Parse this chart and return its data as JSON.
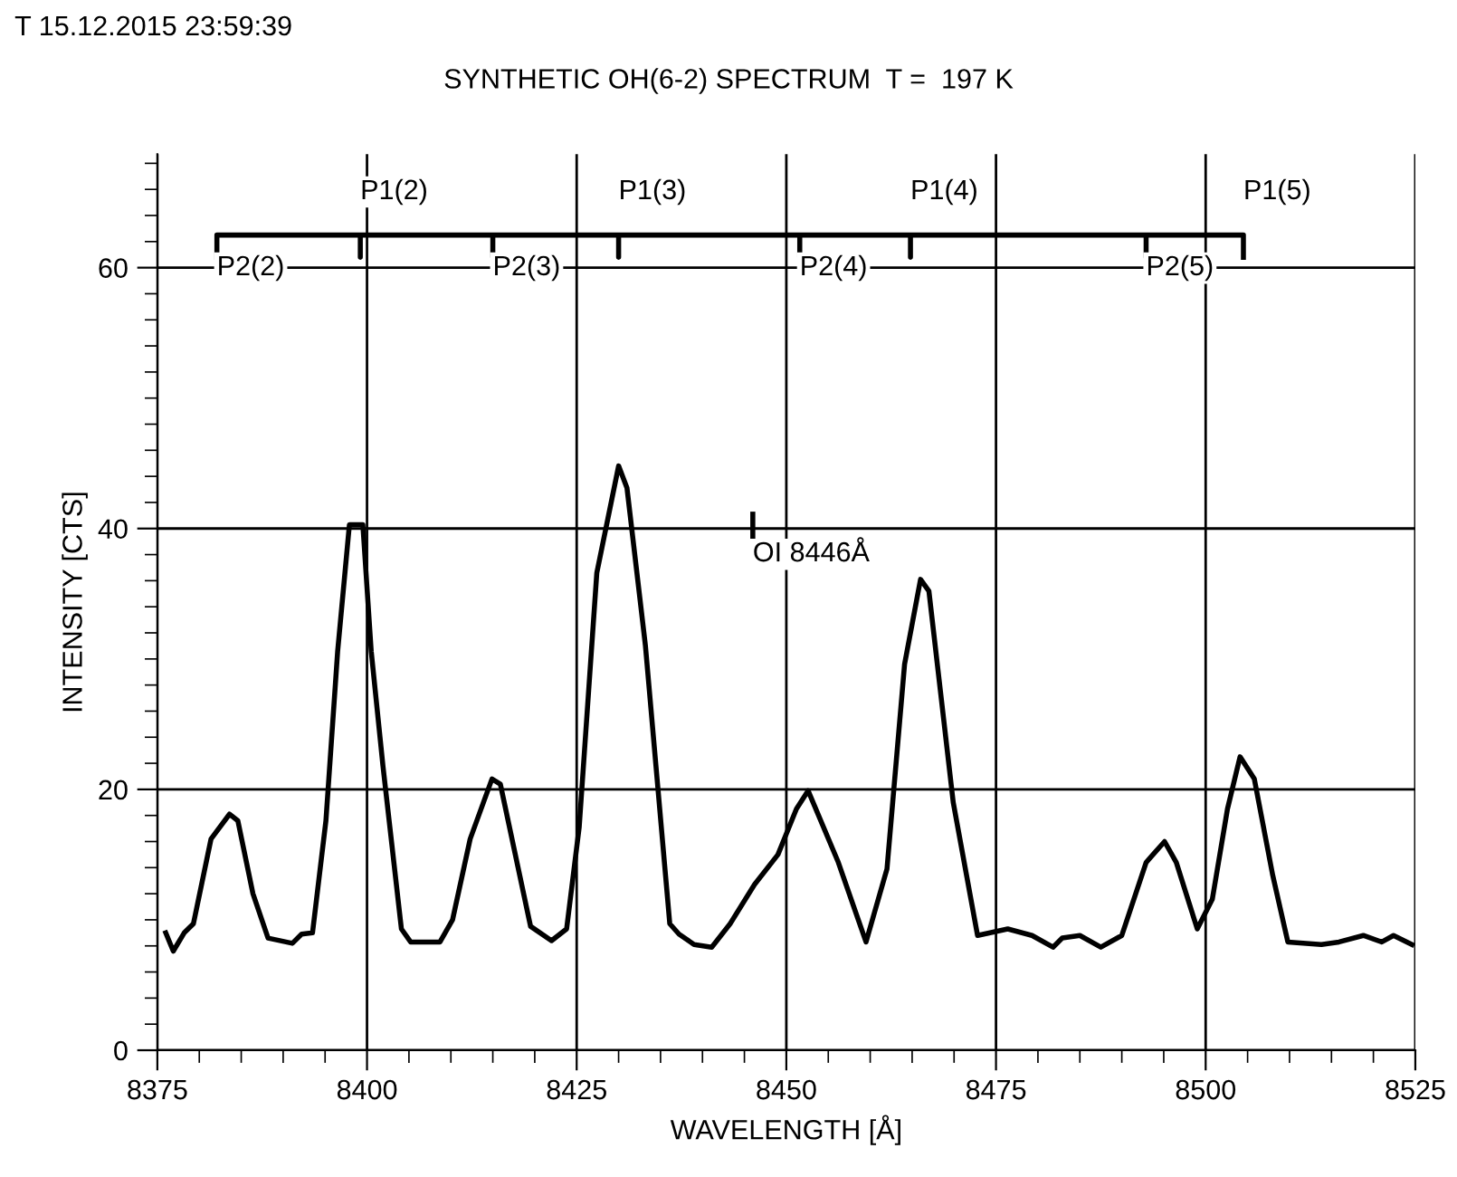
{
  "chart_data": {
    "type": "line",
    "title": "SYNTHETIC OH(6-2) SPECTRUM  T =  197 K",
    "xlabel": "WAVELENGTH [Å]",
    "ylabel": "INTENSITY [CTS]",
    "x": [
      8376.0,
      8376.9,
      8378.2,
      8379.3,
      8381.4,
      8383.6,
      8384.6,
      8386.4,
      8388.2,
      8391.1,
      8392.2,
      8393.5,
      8395.1,
      8396.5,
      8397.9,
      8399.5,
      8400.5,
      8401.9,
      8404.1,
      8405.2,
      8408.7,
      8410.2,
      8412.3,
      8414.9,
      8415.9,
      8419.5,
      8422.0,
      8423.8,
      8425.3,
      8427.4,
      8430.0,
      8431.0,
      8433.2,
      8436.1,
      8437.2,
      8439.0,
      8441.1,
      8443.3,
      8446.2,
      8449.0,
      8451.2,
      8452.6,
      8456.2,
      8459.5,
      8462.0,
      8464.1,
      8466.0,
      8467.0,
      8469.9,
      8472.8,
      8476.4,
      8479.3,
      8481.8,
      8482.9,
      8485.0,
      8487.5,
      8490.0,
      8492.9,
      8495.1,
      8496.5,
      8499.0,
      8500.8,
      8502.6,
      8504.1,
      8505.8,
      8508.0,
      8509.8,
      8513.8,
      8515.9,
      8518.8,
      8521.0,
      8522.4,
      8524.6
    ],
    "series": [
      {
        "color": "#000000",
        "values": [
          9.0,
          7.6,
          9.0,
          9.7,
          16.2,
          18.1,
          17.6,
          12.0,
          8.6,
          8.2,
          8.9,
          9.0,
          17.6,
          30.6,
          40.3,
          40.3,
          30.6,
          21.8,
          9.3,
          8.3,
          8.3,
          10.0,
          16.2,
          20.8,
          20.4,
          9.5,
          8.4,
          9.3,
          17.1,
          36.6,
          44.8,
          43.1,
          31.0,
          9.7,
          8.9,
          8.1,
          7.9,
          9.7,
          12.7,
          15.0,
          18.5,
          19.9,
          14.4,
          8.3,
          13.9,
          29.6,
          36.1,
          35.2,
          19.0,
          8.8,
          9.3,
          8.8,
          7.9,
          8.6,
          8.8,
          7.9,
          8.8,
          14.4,
          16.0,
          14.4,
          9.3,
          11.6,
          18.5,
          22.5,
          20.8,
          13.4,
          8.3,
          8.1,
          8.3,
          8.8,
          8.3,
          8.8,
          8.1
        ]
      },
      {
        "color": "#000000",
        "x": [
          8382.1,
          8382.1,
          8399.2,
          8399.2,
          8399.2,
          8415.0,
          8415.0,
          8415.0,
          8430.0,
          8430.0,
          8430.0,
          8451.6,
          8451.6,
          8451.6,
          8464.8,
          8464.8,
          8464.8,
          8492.9,
          8492.9,
          8492.9,
          8504.5,
          8504.5
        ],
        "values": [
          60.8,
          62.5,
          62.5,
          60.8,
          62.5,
          62.5,
          60.8,
          62.5,
          62.5,
          60.8,
          62.5,
          62.5,
          60.8,
          62.5,
          62.5,
          60.8,
          62.5,
          62.5,
          60.8,
          62.5,
          62.5,
          60.8
        ]
      },
      {
        "color": "#000000",
        "x": [
          8446,
          8446
        ],
        "values": [
          39.4,
          41.1
        ]
      }
    ],
    "xlim": [
      8375,
      8525
    ],
    "xticks": [
      8375,
      8400,
      8425,
      8450,
      8475,
      8500,
      8525
    ],
    "ylim": [
      0,
      68.7
    ],
    "yticks": [
      0,
      20,
      40,
      60
    ],
    "grid": true,
    "marker": "none",
    "line_style": "solid",
    "legend": false,
    "annotations": [
      "T 15.12.2015 23:59:39",
      {
        "text": "P2(2)",
        "x": 8382.1,
        "y": 62.5
      },
      {
        "text": "P1(2)",
        "x": 8399.2,
        "y": 62.5
      },
      {
        "text": "P2(3)",
        "x": 8415.0,
        "y": 62.5
      },
      {
        "text": "P1(3)",
        "x": 8430.0,
        "y": 62.5
      },
      {
        "text": "P2(4)",
        "x": 8451.6,
        "y": 62.5
      },
      {
        "text": "P1(4)",
        "x": 8464.8,
        "y": 62.5
      },
      {
        "text": "P2(5)",
        "x": 8492.9,
        "y": 62.5
      },
      {
        "text": "P1(5)",
        "x": 8504.5,
        "y": 62.5
      },
      {
        "text": "OI 8446Å",
        "x": 8446,
        "y": 39.4
      }
    ]
  }
}
